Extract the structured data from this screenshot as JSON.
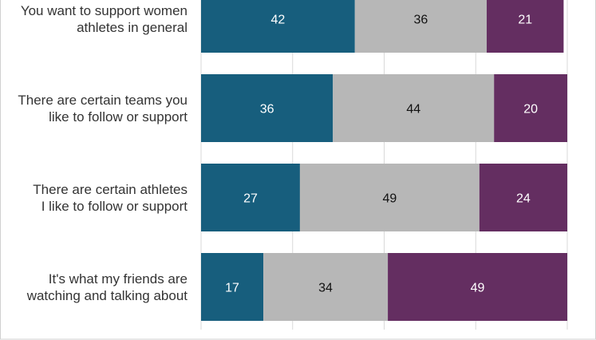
{
  "chart_data": {
    "type": "bar",
    "orientation": "horizontal",
    "stacked": true,
    "categories": [
      [
        "You want to support women",
        "athletes in general"
      ],
      [
        "There are certain teams you",
        "like to follow or support"
      ],
      [
        "There are certain athletes",
        "I like to follow or support"
      ],
      [
        "It's what my friends are",
        "watching and talking about"
      ]
    ],
    "series": [
      {
        "values": [
          42,
          36,
          27,
          17
        ]
      },
      {
        "values": [
          36,
          44,
          49,
          34
        ]
      },
      {
        "values": [
          21,
          20,
          24,
          49
        ]
      }
    ],
    "xlim": [
      0,
      100
    ],
    "grid": true,
    "colors": [
      "#175e7d",
      "#b7b7b7",
      "#642e61"
    ],
    "label_colors": [
      "#ffffff",
      "#111111",
      "#ffffff"
    ]
  }
}
